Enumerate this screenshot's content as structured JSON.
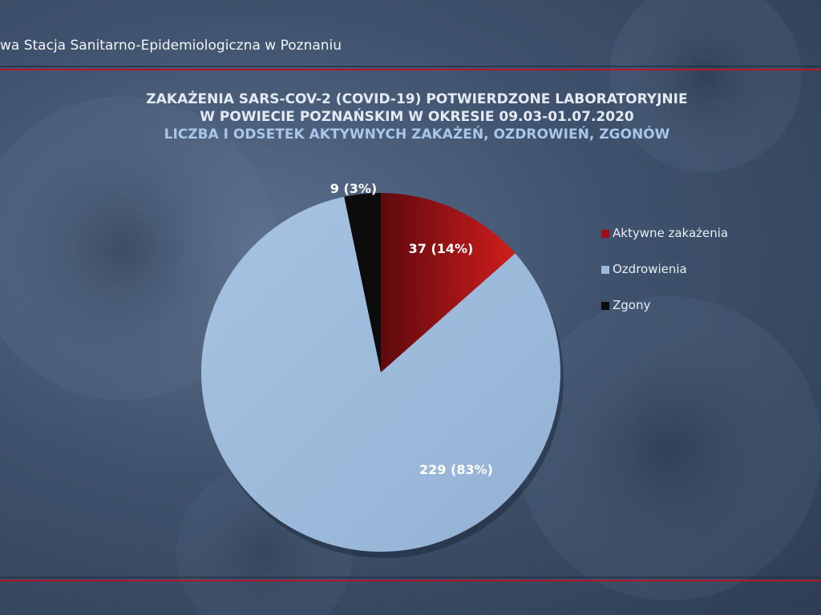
{
  "header": {
    "org_name": "wa Stacja Sanitarno-Epidemiologiczna w Poznaniu"
  },
  "colors": {
    "accent_line": "#b4162a",
    "background": "#3f526d"
  },
  "chart_data": {
    "type": "pie",
    "title": "ZAKAŻENIA SARS-COV-2 (COVID-19) POTWIERDZONE LABORATORYJNIE",
    "title_line2": "W POWIECIE POZNAŃSKIM W OKRESIE 09.03-01.07.2020",
    "subtitle": "LICZBA I ODSETEK AKTYWNYCH ZAKAŻEŃ, OZDROWIEŃ, ZGONÓW",
    "legend_position": "right",
    "slices": [
      {
        "name": "Aktywne zakażenia",
        "value": 37,
        "percent": 14,
        "label": "37 (14%)",
        "color": "#a00d14"
      },
      {
        "name": "Ozdrowienia",
        "value": 229,
        "percent": 83,
        "label": "229 (83%)",
        "color": "#9ab8d8"
      },
      {
        "name": "Zgony",
        "value": 9,
        "percent": 3,
        "label": "9 (3%)",
        "color": "#0c0c0c"
      }
    ]
  }
}
